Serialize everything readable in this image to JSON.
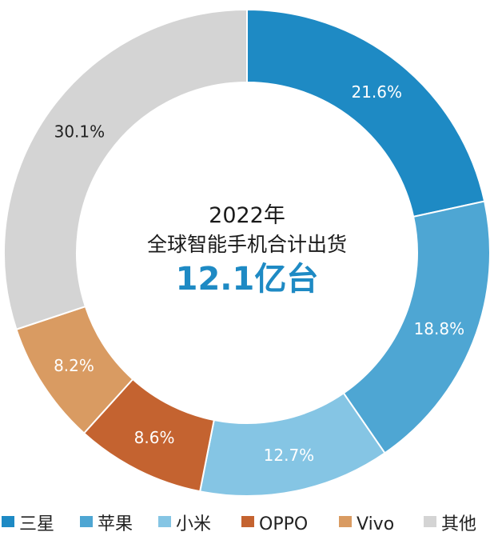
{
  "chart_data": {
    "type": "pie",
    "donut": true,
    "categories": [
      "三星",
      "苹果",
      "小米",
      "OPPO",
      "Vivo",
      "其他"
    ],
    "values": [
      21.6,
      18.8,
      12.7,
      8.6,
      8.2,
      30.1
    ],
    "value_labels": [
      "21.6%",
      "18.8%",
      "12.7%",
      "8.6%",
      "8.2%",
      "30.1%"
    ],
    "colors": [
      "#1e8ac4",
      "#4ea6d3",
      "#85c5e4",
      "#c46330",
      "#d99b62",
      "#d4d4d4"
    ],
    "label_colors": [
      "#ffffff",
      "#ffffff",
      "#ffffff",
      "#ffffff",
      "#ffffff",
      "#222222"
    ],
    "start_angle_deg": 0,
    "direction": "clockwise",
    "legend": "bottom",
    "center_text": {
      "line1": "2022年",
      "line2": "全球智能手机合计出货",
      "line3": "12.1亿台"
    }
  }
}
